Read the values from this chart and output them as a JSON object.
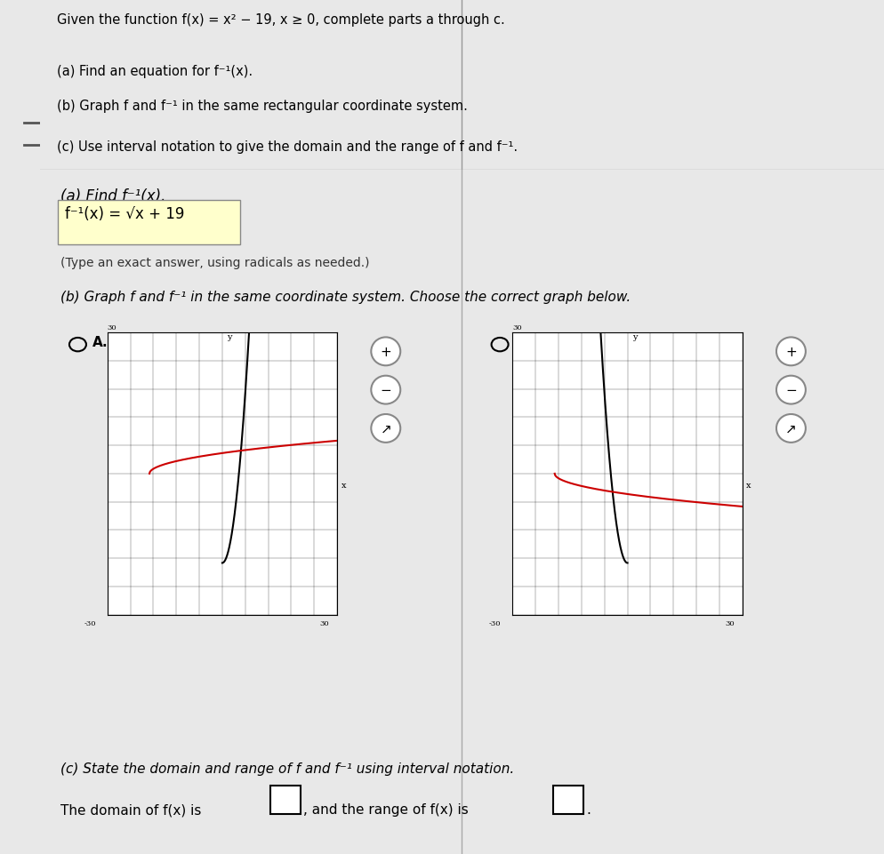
{
  "bg_color": "#e8e8e8",
  "white": "#ffffff",
  "black": "#000000",
  "red": "#cc0000",
  "yellow_highlight": "#ffffcc",
  "title_text": "Given the function f(x) = x² − 19, x ≥ 0, complete parts a through c.",
  "part_a_intro": "(a) Find an equation for f⁻¹(x).",
  "part_b_intro": "(b) Graph f and f⁻¹ in the same rectangular coordinate system.",
  "part_c_intro": "(c) Use interval notation to give the domain and the range of f and f⁻¹.",
  "part_a2_label": "(a) Find f⁻¹(x).",
  "answer_line1": "f⁻¹(x) = √x + 19",
  "type_note": "(Type an exact answer, using radicals as needed.)",
  "part_b2_label": "(b) Graph f and f⁻¹ in the same coordinate system. Choose the correct graph below.",
  "part_c2_label": "(c) State the domain and range of f and f⁻¹ using interval notation.",
  "domain_text": "The domain of f(x) is",
  "range_text": ", and the range of f(x) is",
  "graph_xlim": [
    -30,
    30
  ],
  "graph_ylim": [
    -30,
    30
  ],
  "f_color": "#000000",
  "finv_color": "#cc0000",
  "left_bar_color": "#c8c8c8",
  "left_bar_width": 0.045
}
